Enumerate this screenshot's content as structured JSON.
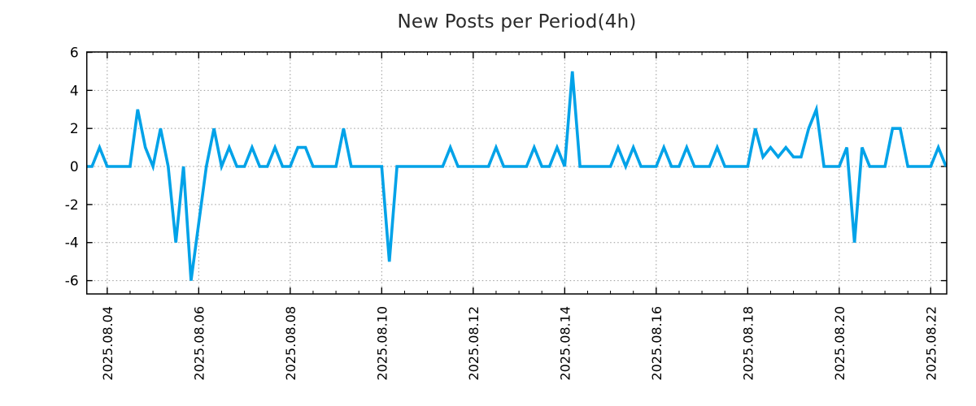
{
  "page": {
    "background": "#ffffff"
  },
  "chart_data": {
    "type": "line",
    "title": "New Posts per Period(4h)",
    "xlabel": "",
    "ylabel": "",
    "legend": "none",
    "grid": "dotted",
    "period_hours": 4,
    "x_origin_estimate": "2025.08.03 12:00",
    "x_unit": "4-hour period index from x_origin_estimate",
    "x_tick_labels": [
      "2025.08.04",
      "2025.08.06",
      "2025.08.08",
      "2025.08.10",
      "2025.08.12",
      "2025.08.14",
      "2025.08.16",
      "2025.08.18",
      "2025.08.20",
      "2025.08.22"
    ],
    "x_tick_indices": [
      3,
      15,
      27,
      39,
      51,
      63,
      75,
      87,
      99,
      111
    ],
    "x_minor_tick_every_periods": 3,
    "y_tick_labels": [
      "6",
      "4",
      "2",
      "0",
      "-2",
      "-4",
      "-6"
    ],
    "y_tick_values": [
      6,
      4,
      2,
      0,
      -2,
      -4,
      -6
    ],
    "xlim": [
      0.32,
      113.1
    ],
    "ylim": [
      -6.7,
      6.02
    ],
    "series": [
      {
        "name": "new-posts-per-4h",
        "color": "#00A2E8",
        "values": [
          0,
          0,
          1,
          0,
          0,
          0,
          0,
          3,
          1,
          0,
          2,
          0,
          -4,
          0,
          -6,
          -3,
          0,
          2,
          0,
          1,
          0,
          0,
          1,
          0,
          0,
          1,
          0,
          0,
          1,
          1,
          0,
          0,
          0,
          0,
          2,
          0,
          0,
          0,
          0,
          0,
          -5,
          0,
          0,
          0,
          0,
          0,
          0,
          0,
          1,
          0,
          0,
          0,
          0,
          0,
          1,
          0,
          0,
          0,
          0,
          1,
          0,
          0,
          1,
          0,
          5,
          0,
          0,
          0,
          0,
          0,
          1,
          0,
          1,
          0,
          0,
          0,
          1,
          0,
          0,
          1,
          0,
          0,
          0,
          1,
          0,
          0,
          0,
          0,
          2,
          0.5,
          1,
          0.5,
          1,
          0.5,
          0.5,
          2,
          3,
          0,
          0,
          0,
          1,
          -4,
          1,
          0,
          0,
          0,
          2,
          2,
          0,
          0,
          0,
          0,
          1,
          0
        ]
      }
    ],
    "colors": {
      "line": "#00A2E8",
      "grid": "#9a9a9a",
      "border": "#000000",
      "title_text": "#2a2a2a",
      "tick_text": "#000000",
      "background": "#ffffff"
    }
  }
}
